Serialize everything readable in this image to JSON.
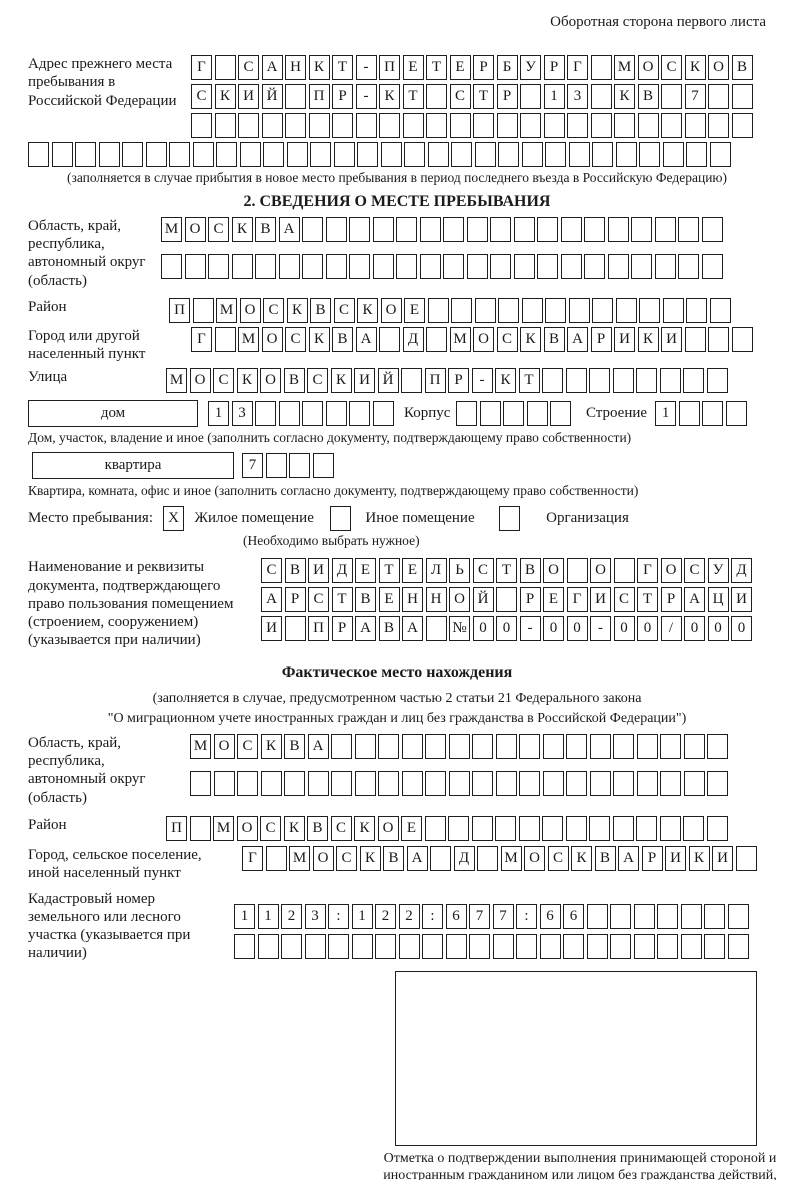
{
  "colors": {
    "ink": "#1a1a1a",
    "paper": "#ffffff"
  },
  "header": {
    "top_right": "Оборотная сторона первого листа"
  },
  "prev_address": {
    "label": "Адрес прежнего места пребывания в Российской Федерации",
    "rows": [
      "Г САНКТ-ПЕТЕРБУРГ МОСКОВ",
      "СКИЙ ПР-КТ СТР 13 КВ 7  ",
      "                        "
    ],
    "extra_row": "                              ",
    "caption": "(заполняется в случае прибытия в новое место пребывания в период последнего въезда в Российскую Федерацию)"
  },
  "section2": {
    "title": "2. СВЕДЕНИЯ О МЕСТЕ ПРЕБЫВАНИЯ",
    "region": {
      "label": "Область, край, республика, автономный округ (область)",
      "row1": "МОСКВА                  ",
      "row2": "                        "
    },
    "district": {
      "label": "Район",
      "row": "П МОСКВСКОЕ             "
    },
    "city": {
      "label": "Город или другой населенный пункт",
      "row": "Г МОСКВА Д МОСКВАРИКИ   "
    },
    "street": {
      "label": "Улица",
      "row": "МОСКОВСКИЙ ПР-КТ        "
    },
    "house": {
      "label": "дом",
      "cells": "13      ",
      "korpus_label": "Корпус",
      "korpus_cells": "     ",
      "stroenie_label": "Строение",
      "stroenie_cells": "1   "
    },
    "house_caption": "Дом, участок, владение и иное (заполнить согласно документу, подтверждающему право собственности)",
    "apartment": {
      "label": "квартира",
      "cells": "7   "
    },
    "apartment_caption": "Квартира, комната, офис и иное (заполнить согласно документу, подтверждающему право собственности)",
    "stay_type": {
      "label": "Место пребывания:",
      "options": [
        {
          "label": "Жилое помещение",
          "checked": "X"
        },
        {
          "label": "Иное помещение",
          "checked": " "
        },
        {
          "label": "Организация",
          "checked": " "
        }
      ],
      "note": "(Необходимо выбрать нужное)"
    },
    "document": {
      "label": "Наименование и реквизиты документа, подтверждающего право пользования помещением (строением, сооружением) (указывается при наличии)",
      "rows": [
        "СВИДЕТЕЛЬСТВО О ГОСУД",
        "АРСТВЕННОЙ РЕГИСТРАЦИ",
        "И ПРАВА №00-00-00/000"
      ]
    }
  },
  "actual_location": {
    "title": "Фактическое место нахождения",
    "caption_line1": "(заполняется в случае, предусмотренном частью 2 статьи 21 Федерального закона",
    "caption_line2": "\"О миграционном учете иностранных граждан и лиц без гражданства в Российской Федерации\")",
    "region": {
      "label": "Область, край, республика, автономный округ (область)",
      "row1": "МОСКВА                 ",
      "row2": "                       "
    },
    "district": {
      "label": "Район",
      "row": "П МОСКВСКОЕ             "
    },
    "city": {
      "label": "Город, сельское поселение, иной населенный пункт",
      "row": "Г МОСКВА Д МОСКВАРИКИ "
    },
    "cadastral": {
      "label": "Кадастровый номер земельного или лесного участка (указывается при наличии)",
      "row1": "1123:122:677:66       ",
      "row2": "                      "
    },
    "stamp_caption": "Отметка о подтверждении выполнения принимающей стороной и иностранным гражданином или лицом без гражданства действий, необходимых для его постановки на учет по месту пребывания"
  }
}
